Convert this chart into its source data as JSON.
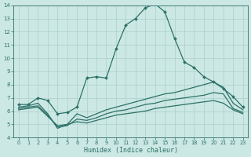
{
  "xlabel": "Humidex (Indice chaleur)",
  "xlim": [
    -0.5,
    23.5
  ],
  "ylim": [
    4,
    14
  ],
  "xticks": [
    0,
    1,
    2,
    3,
    4,
    5,
    6,
    7,
    8,
    9,
    10,
    11,
    12,
    13,
    14,
    15,
    16,
    17,
    18,
    19,
    20,
    21,
    22,
    23
  ],
  "yticks": [
    4,
    5,
    6,
    7,
    8,
    9,
    10,
    11,
    12,
    13,
    14
  ],
  "bg_color": "#cce8e4",
  "line_color": "#2d7068",
  "grid_color": "#aacfca",
  "line1_x": [
    0,
    1,
    2,
    3,
    4,
    5,
    6,
    7,
    8,
    9,
    10,
    11,
    12,
    13,
    14,
    15,
    16,
    17,
    18,
    19,
    20,
    21,
    22,
    23
  ],
  "line1_y": [
    6.5,
    6.5,
    7.0,
    6.8,
    5.8,
    5.9,
    6.3,
    8.5,
    8.6,
    8.5,
    10.7,
    12.5,
    13.0,
    13.8,
    14.1,
    13.5,
    11.5,
    9.7,
    9.3,
    8.6,
    8.2,
    7.7,
    7.1,
    6.3
  ],
  "line2_x": [
    0,
    1,
    2,
    3,
    4,
    5,
    6,
    7,
    8,
    9,
    10,
    11,
    12,
    13,
    14,
    15,
    16,
    17,
    18,
    19,
    20,
    21,
    22,
    23
  ],
  "line2_y": [
    6.3,
    6.4,
    6.6,
    5.8,
    4.7,
    5.0,
    5.8,
    5.5,
    5.8,
    6.1,
    6.3,
    6.5,
    6.7,
    6.9,
    7.1,
    7.3,
    7.4,
    7.6,
    7.8,
    8.0,
    8.2,
    7.8,
    6.6,
    6.1
  ],
  "line3_x": [
    0,
    1,
    2,
    3,
    4,
    5,
    6,
    7,
    8,
    9,
    10,
    11,
    12,
    13,
    14,
    15,
    16,
    17,
    18,
    19,
    20,
    21,
    22,
    23
  ],
  "line3_y": [
    6.2,
    6.3,
    6.4,
    5.7,
    4.8,
    4.9,
    5.4,
    5.3,
    5.5,
    5.8,
    6.0,
    6.1,
    6.3,
    6.5,
    6.6,
    6.8,
    6.9,
    7.0,
    7.1,
    7.2,
    7.4,
    7.3,
    6.2,
    5.9
  ],
  "line4_x": [
    0,
    1,
    2,
    3,
    4,
    5,
    6,
    7,
    8,
    9,
    10,
    11,
    12,
    13,
    14,
    15,
    16,
    17,
    18,
    19,
    20,
    21,
    22,
    23
  ],
  "line4_y": [
    6.1,
    6.2,
    6.3,
    5.6,
    4.9,
    5.0,
    5.2,
    5.1,
    5.3,
    5.5,
    5.7,
    5.8,
    5.9,
    6.0,
    6.2,
    6.3,
    6.4,
    6.5,
    6.6,
    6.7,
    6.8,
    6.6,
    6.1,
    5.8
  ]
}
